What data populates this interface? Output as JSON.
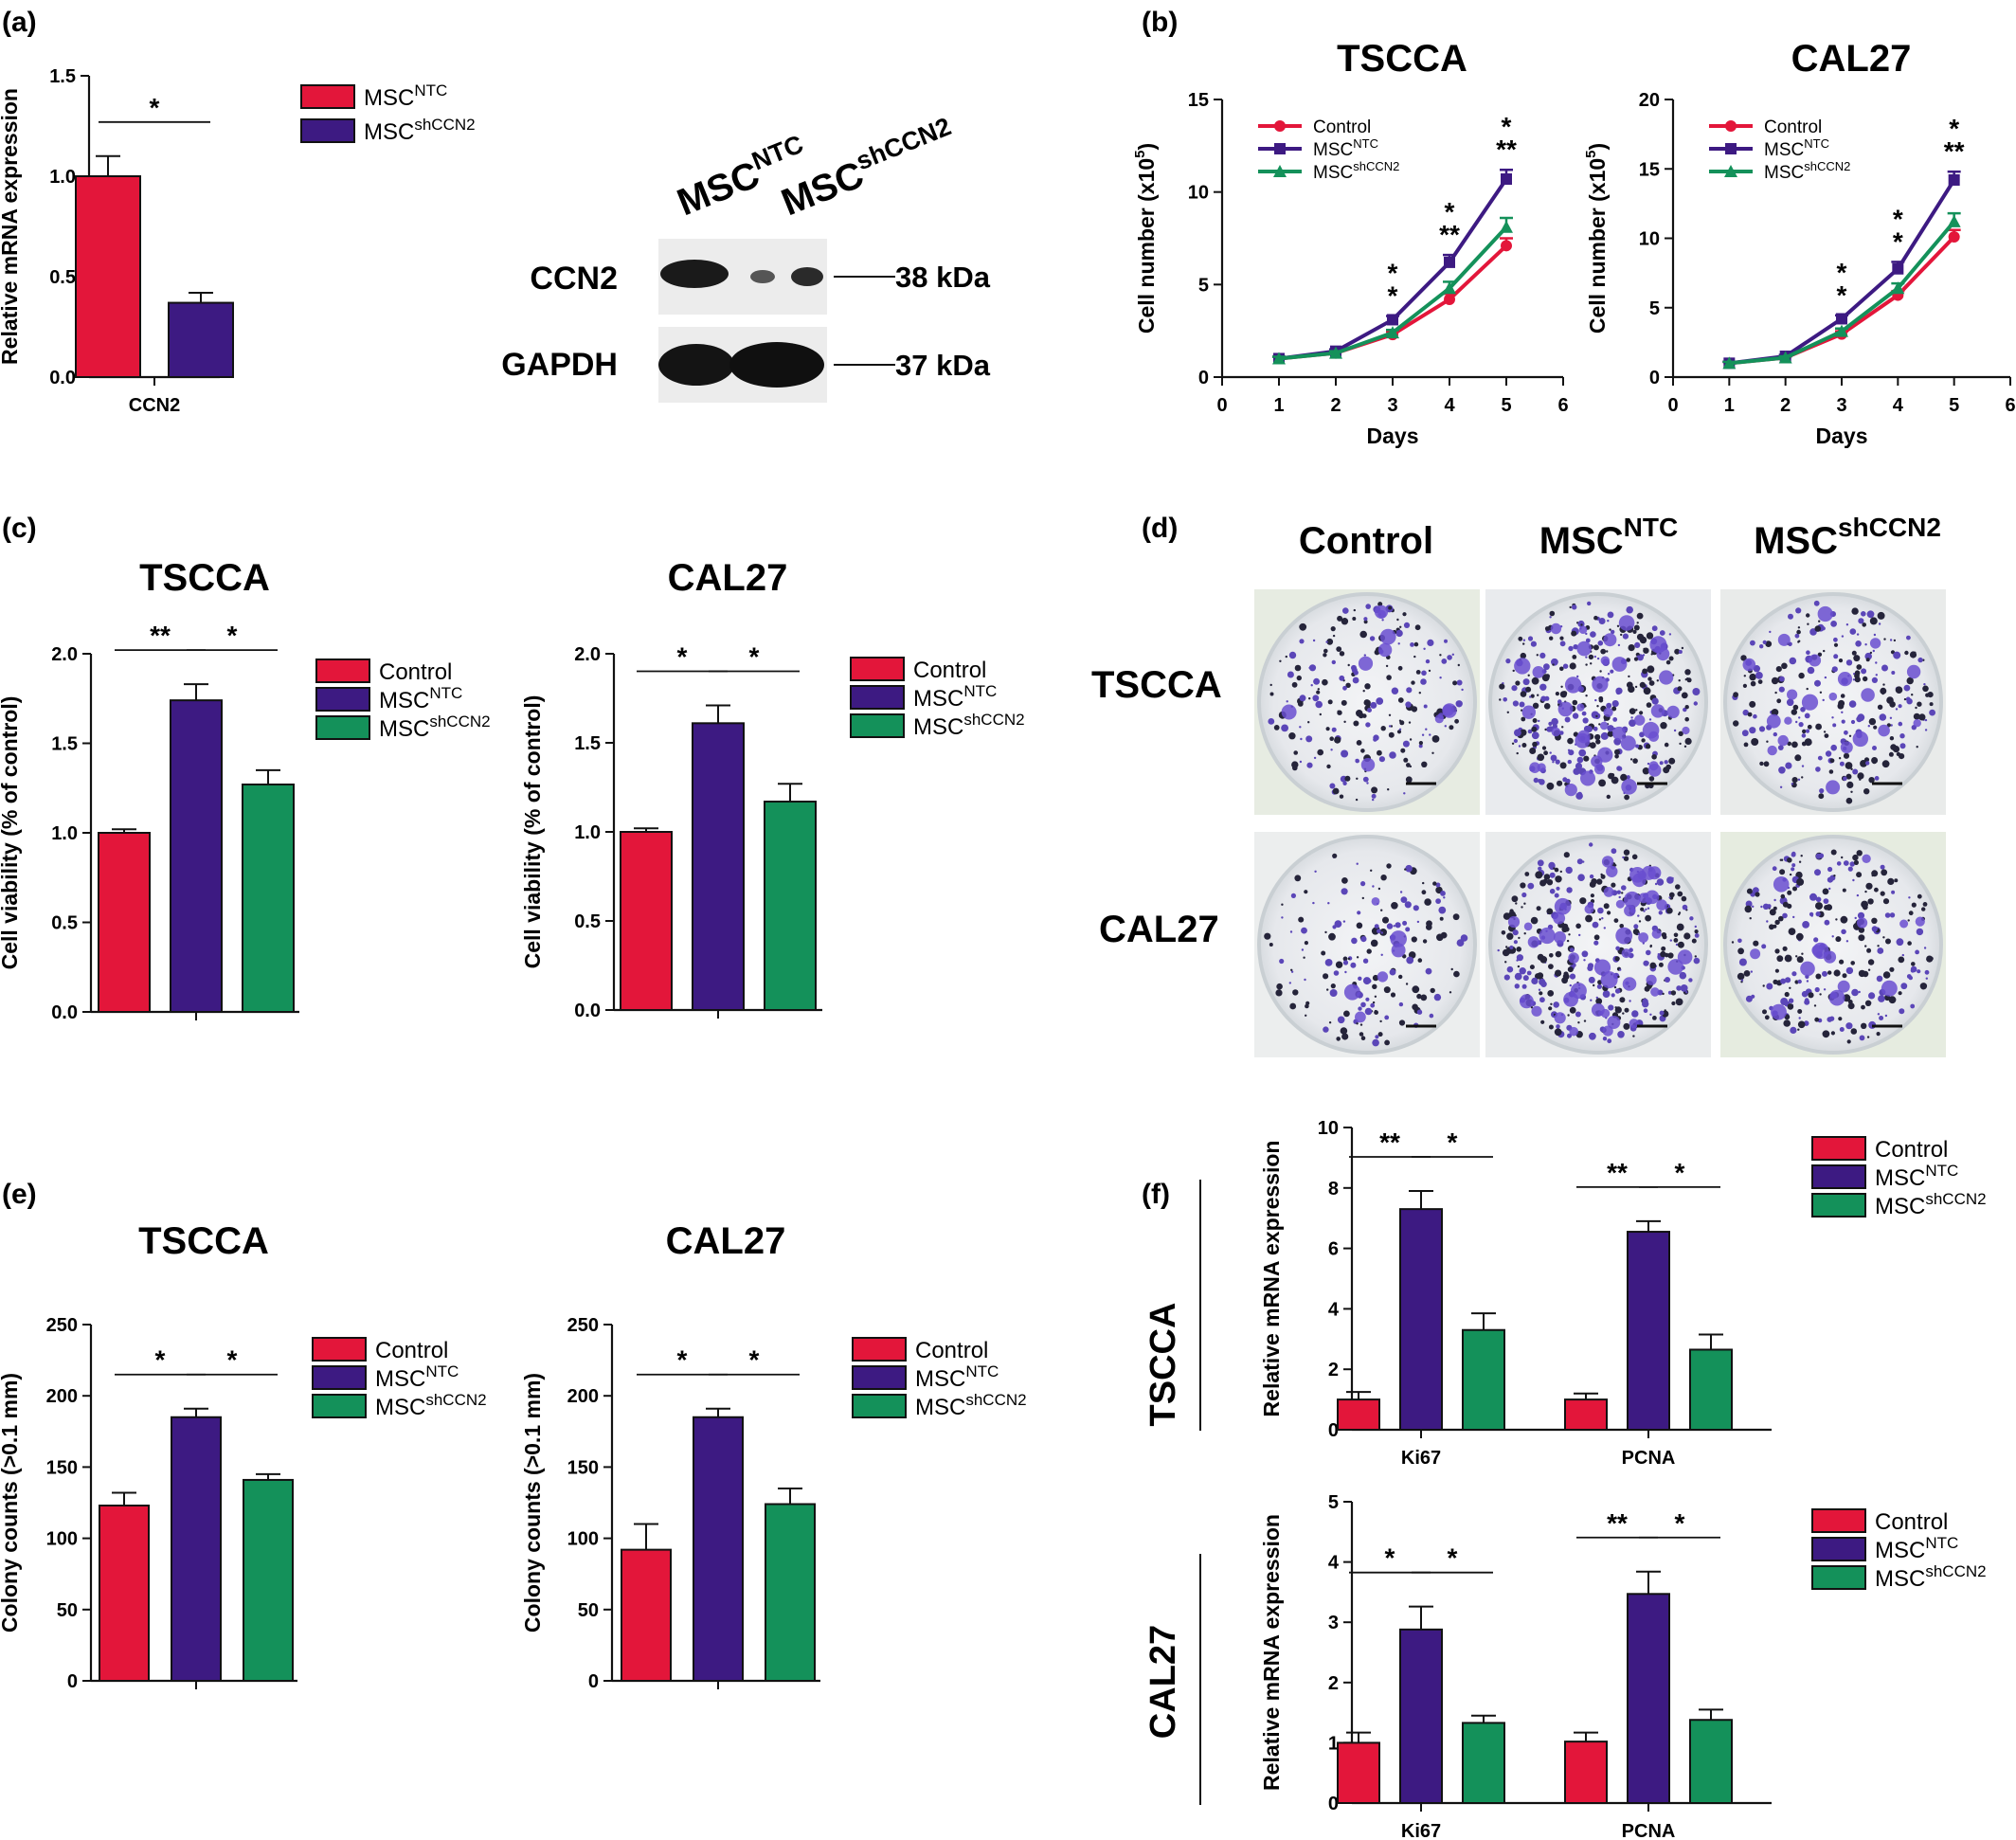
{
  "colors": {
    "control": "#E3163A",
    "ntc": "#3D1A82",
    "sh": "#14915A",
    "axis": "#111111"
  },
  "panel_labels": [
    "(a)",
    "(b)",
    "(c)",
    "(d)",
    "(e)",
    "(f)"
  ],
  "legend_groups": {
    "ab": [
      {
        "base": "MSC",
        "sup": "NTC"
      },
      {
        "base": "MSC",
        "sup": "shCCN2"
      }
    ],
    "three": [
      {
        "base": "Control",
        "sup": ""
      },
      {
        "base": "MSC",
        "sup": "NTC"
      },
      {
        "base": "MSC",
        "sup": "shCCN2"
      }
    ]
  },
  "blot": {
    "lane_labels": [
      {
        "base": "MSC",
        "sup": "NTC"
      },
      {
        "base": "MSC",
        "sup": "shCCN2"
      }
    ],
    "rows": [
      {
        "name": "CCN2",
        "size": "38 kDa"
      },
      {
        "name": "GAPDH",
        "size": "37 kDa"
      }
    ]
  },
  "colony_images": {
    "col_labels": [
      {
        "base": "Control",
        "sup": ""
      },
      {
        "base": "MSC",
        "sup": "NTC"
      },
      {
        "base": "MSC",
        "sup": "shCCN2"
      }
    ],
    "row_labels": [
      "TSCCA",
      "CAL27"
    ]
  },
  "f_row_labels": [
    "TSCCA",
    "CAL27"
  ],
  "chart_data": [
    {
      "id": "a",
      "type": "bar",
      "title": "",
      "ylabel": "Relative mRNA expression",
      "categories": [
        "CCN2"
      ],
      "ylim": [
        0,
        1.5
      ],
      "yticks": [
        "0.0",
        "0.5",
        "1.0",
        "1.5"
      ],
      "series": [
        {
          "name": "MSCNTC",
          "values": [
            1.0
          ],
          "errors": [
            0.1
          ]
        },
        {
          "name": "MSCshCCN2",
          "values": [
            0.37
          ],
          "errors": [
            0.05
          ]
        }
      ],
      "significance": [
        {
          "label": "*"
        }
      ]
    },
    {
      "id": "b1",
      "type": "line",
      "title": "TSCCA",
      "xlabel": "Days",
      "ylabel": "Cell number (x10",
      "ylabel_sup": "5",
      "ylabel_end": ")",
      "xlim": [
        0,
        6
      ],
      "ylim": [
        0,
        15
      ],
      "xticks": [
        "0",
        "1",
        "2",
        "3",
        "4",
        "5",
        "6"
      ],
      "yticks": [
        "0",
        "5",
        "10",
        "15"
      ],
      "x": [
        1,
        2,
        3,
        4,
        5
      ],
      "series": [
        {
          "name": "Control",
          "values": [
            1.0,
            1.3,
            2.3,
            4.2,
            7.1
          ],
          "errors": [
            0.1,
            0.1,
            0.15,
            0.3,
            0.4
          ]
        },
        {
          "name": "MSCNTC",
          "values": [
            1.0,
            1.4,
            3.1,
            6.2,
            10.7
          ],
          "errors": [
            0.1,
            0.1,
            0.2,
            0.4,
            0.5
          ]
        },
        {
          "name": "MSCshCCN2",
          "values": [
            1.0,
            1.3,
            2.4,
            4.8,
            8.1
          ],
          "errors": [
            0.1,
            0.1,
            0.15,
            0.35,
            0.5
          ]
        }
      ],
      "annotations": [
        {
          "x": 3,
          "labels": [
            "*",
            "*"
          ]
        },
        {
          "x": 4,
          "labels": [
            "*",
            "**"
          ]
        },
        {
          "x": 5,
          "labels": [
            "*",
            "**"
          ]
        }
      ]
    },
    {
      "id": "b2",
      "type": "line",
      "title": "CAL27",
      "xlabel": "Days",
      "ylabel": "Cell number (x10",
      "ylabel_sup": "5",
      "ylabel_end": ")",
      "xlim": [
        0,
        6
      ],
      "ylim": [
        0,
        20
      ],
      "xticks": [
        "0",
        "1",
        "2",
        "3",
        "4",
        "5",
        "6"
      ],
      "yticks": [
        "0",
        "5",
        "10",
        "15",
        "20"
      ],
      "x": [
        1,
        2,
        3,
        4,
        5
      ],
      "series": [
        {
          "name": "Control",
          "values": [
            1.0,
            1.4,
            3.1,
            5.9,
            10.1
          ],
          "errors": [
            0.1,
            0.1,
            0.2,
            0.3,
            0.5
          ]
        },
        {
          "name": "MSCNTC",
          "values": [
            1.0,
            1.5,
            4.2,
            7.8,
            14.2
          ],
          "errors": [
            0.1,
            0.1,
            0.25,
            0.5,
            0.6
          ]
        },
        {
          "name": "MSCshCCN2",
          "values": [
            1.0,
            1.4,
            3.3,
            6.4,
            11.2
          ],
          "errors": [
            0.1,
            0.1,
            0.2,
            0.35,
            0.6
          ]
        }
      ],
      "annotations": [
        {
          "x": 3,
          "labels": [
            "*",
            "*"
          ]
        },
        {
          "x": 4,
          "labels": [
            "*",
            "*"
          ]
        },
        {
          "x": 5,
          "labels": [
            "*",
            "**"
          ]
        }
      ]
    },
    {
      "id": "c1",
      "type": "bar",
      "title": "TSCCA",
      "ylabel": "Cell viability (% of control)",
      "categories": [
        ""
      ],
      "ylim": [
        0,
        2.0
      ],
      "yticks": [
        "0.0",
        "0.5",
        "1.0",
        "1.5",
        "2.0"
      ],
      "series": [
        {
          "name": "Control",
          "values": [
            1.0
          ],
          "errors": [
            0.02
          ]
        },
        {
          "name": "MSCNTC",
          "values": [
            1.74
          ],
          "errors": [
            0.09
          ]
        },
        {
          "name": "MSCshCCN2",
          "values": [
            1.27
          ],
          "errors": [
            0.08
          ]
        }
      ],
      "significance": [
        {
          "label": "**"
        },
        {
          "label": "*"
        }
      ]
    },
    {
      "id": "c2",
      "type": "bar",
      "title": "CAL27",
      "ylabel": "Cell viability (% of control)",
      "categories": [
        ""
      ],
      "ylim": [
        0,
        2.0
      ],
      "yticks": [
        "0.0",
        "0.5",
        "1.0",
        "1.5",
        "2.0"
      ],
      "series": [
        {
          "name": "Control",
          "values": [
            1.0
          ],
          "errors": [
            0.02
          ]
        },
        {
          "name": "MSCNTC",
          "values": [
            1.61
          ],
          "errors": [
            0.1
          ]
        },
        {
          "name": "MSCshCCN2",
          "values": [
            1.17
          ],
          "errors": [
            0.1
          ]
        }
      ],
      "significance": [
        {
          "label": "*"
        },
        {
          "label": "*"
        }
      ]
    },
    {
      "id": "e1",
      "type": "bar",
      "title": "TSCCA",
      "ylabel": "Colony counts (>0.1 mm)",
      "categories": [
        ""
      ],
      "ylim": [
        0,
        250
      ],
      "yticks": [
        "0",
        "50",
        "100",
        "150",
        "200",
        "250"
      ],
      "series": [
        {
          "name": "Control",
          "values": [
            123
          ],
          "errors": [
            9
          ]
        },
        {
          "name": "MSCNTC",
          "values": [
            185
          ],
          "errors": [
            6
          ]
        },
        {
          "name": "MSCshCCN2",
          "values": [
            141
          ],
          "errors": [
            4
          ]
        }
      ],
      "significance": [
        {
          "label": "*"
        },
        {
          "label": "*"
        }
      ]
    },
    {
      "id": "e2",
      "type": "bar",
      "title": "CAL27",
      "ylabel": "Colony counts (>0.1 mm)",
      "categories": [
        ""
      ],
      "ylim": [
        0,
        250
      ],
      "yticks": [
        "0",
        "50",
        "100",
        "150",
        "200",
        "250"
      ],
      "series": [
        {
          "name": "Control",
          "values": [
            92
          ],
          "errors": [
            18
          ]
        },
        {
          "name": "MSCNTC",
          "values": [
            185
          ],
          "errors": [
            6
          ]
        },
        {
          "name": "MSCshCCN2",
          "values": [
            124
          ],
          "errors": [
            11
          ]
        }
      ],
      "significance": [
        {
          "label": "*"
        },
        {
          "label": "*"
        }
      ]
    },
    {
      "id": "f1",
      "type": "bar",
      "title": "",
      "ylabel": "Relative mRNA expression",
      "categories": [
        "Ki67",
        "PCNA"
      ],
      "ylim": [
        0,
        10
      ],
      "yticks": [
        "0",
        "2",
        "4",
        "6",
        "8",
        "10"
      ],
      "series": [
        {
          "name": "Control",
          "values": [
            1.0,
            1.0
          ],
          "errors": [
            0.25,
            0.2
          ]
        },
        {
          "name": "MSCNTC",
          "values": [
            7.3,
            6.55
          ],
          "errors": [
            0.6,
            0.35
          ]
        },
        {
          "name": "MSCshCCN2",
          "values": [
            3.3,
            2.65
          ],
          "errors": [
            0.55,
            0.5
          ]
        }
      ],
      "significance": [
        {
          "label": "**"
        },
        {
          "label": "*"
        },
        {
          "label": "**"
        },
        {
          "label": "*"
        }
      ]
    },
    {
      "id": "f2",
      "type": "bar",
      "title": "",
      "ylabel": "Relative mRNA expression",
      "categories": [
        "Ki67",
        "PCNA"
      ],
      "ylim": [
        0,
        5
      ],
      "yticks": [
        "0",
        "1",
        "2",
        "3",
        "4",
        "5"
      ],
      "series": [
        {
          "name": "Control",
          "values": [
            1.0,
            1.02
          ],
          "errors": [
            0.17,
            0.15
          ]
        },
        {
          "name": "MSCNTC",
          "values": [
            2.88,
            3.47
          ],
          "errors": [
            0.38,
            0.37
          ]
        },
        {
          "name": "MSCshCCN2",
          "values": [
            1.33,
            1.38
          ],
          "errors": [
            0.12,
            0.17
          ]
        }
      ],
      "significance": [
        {
          "label": "*"
        },
        {
          "label": "*"
        },
        {
          "label": "**"
        },
        {
          "label": "*"
        }
      ]
    }
  ]
}
